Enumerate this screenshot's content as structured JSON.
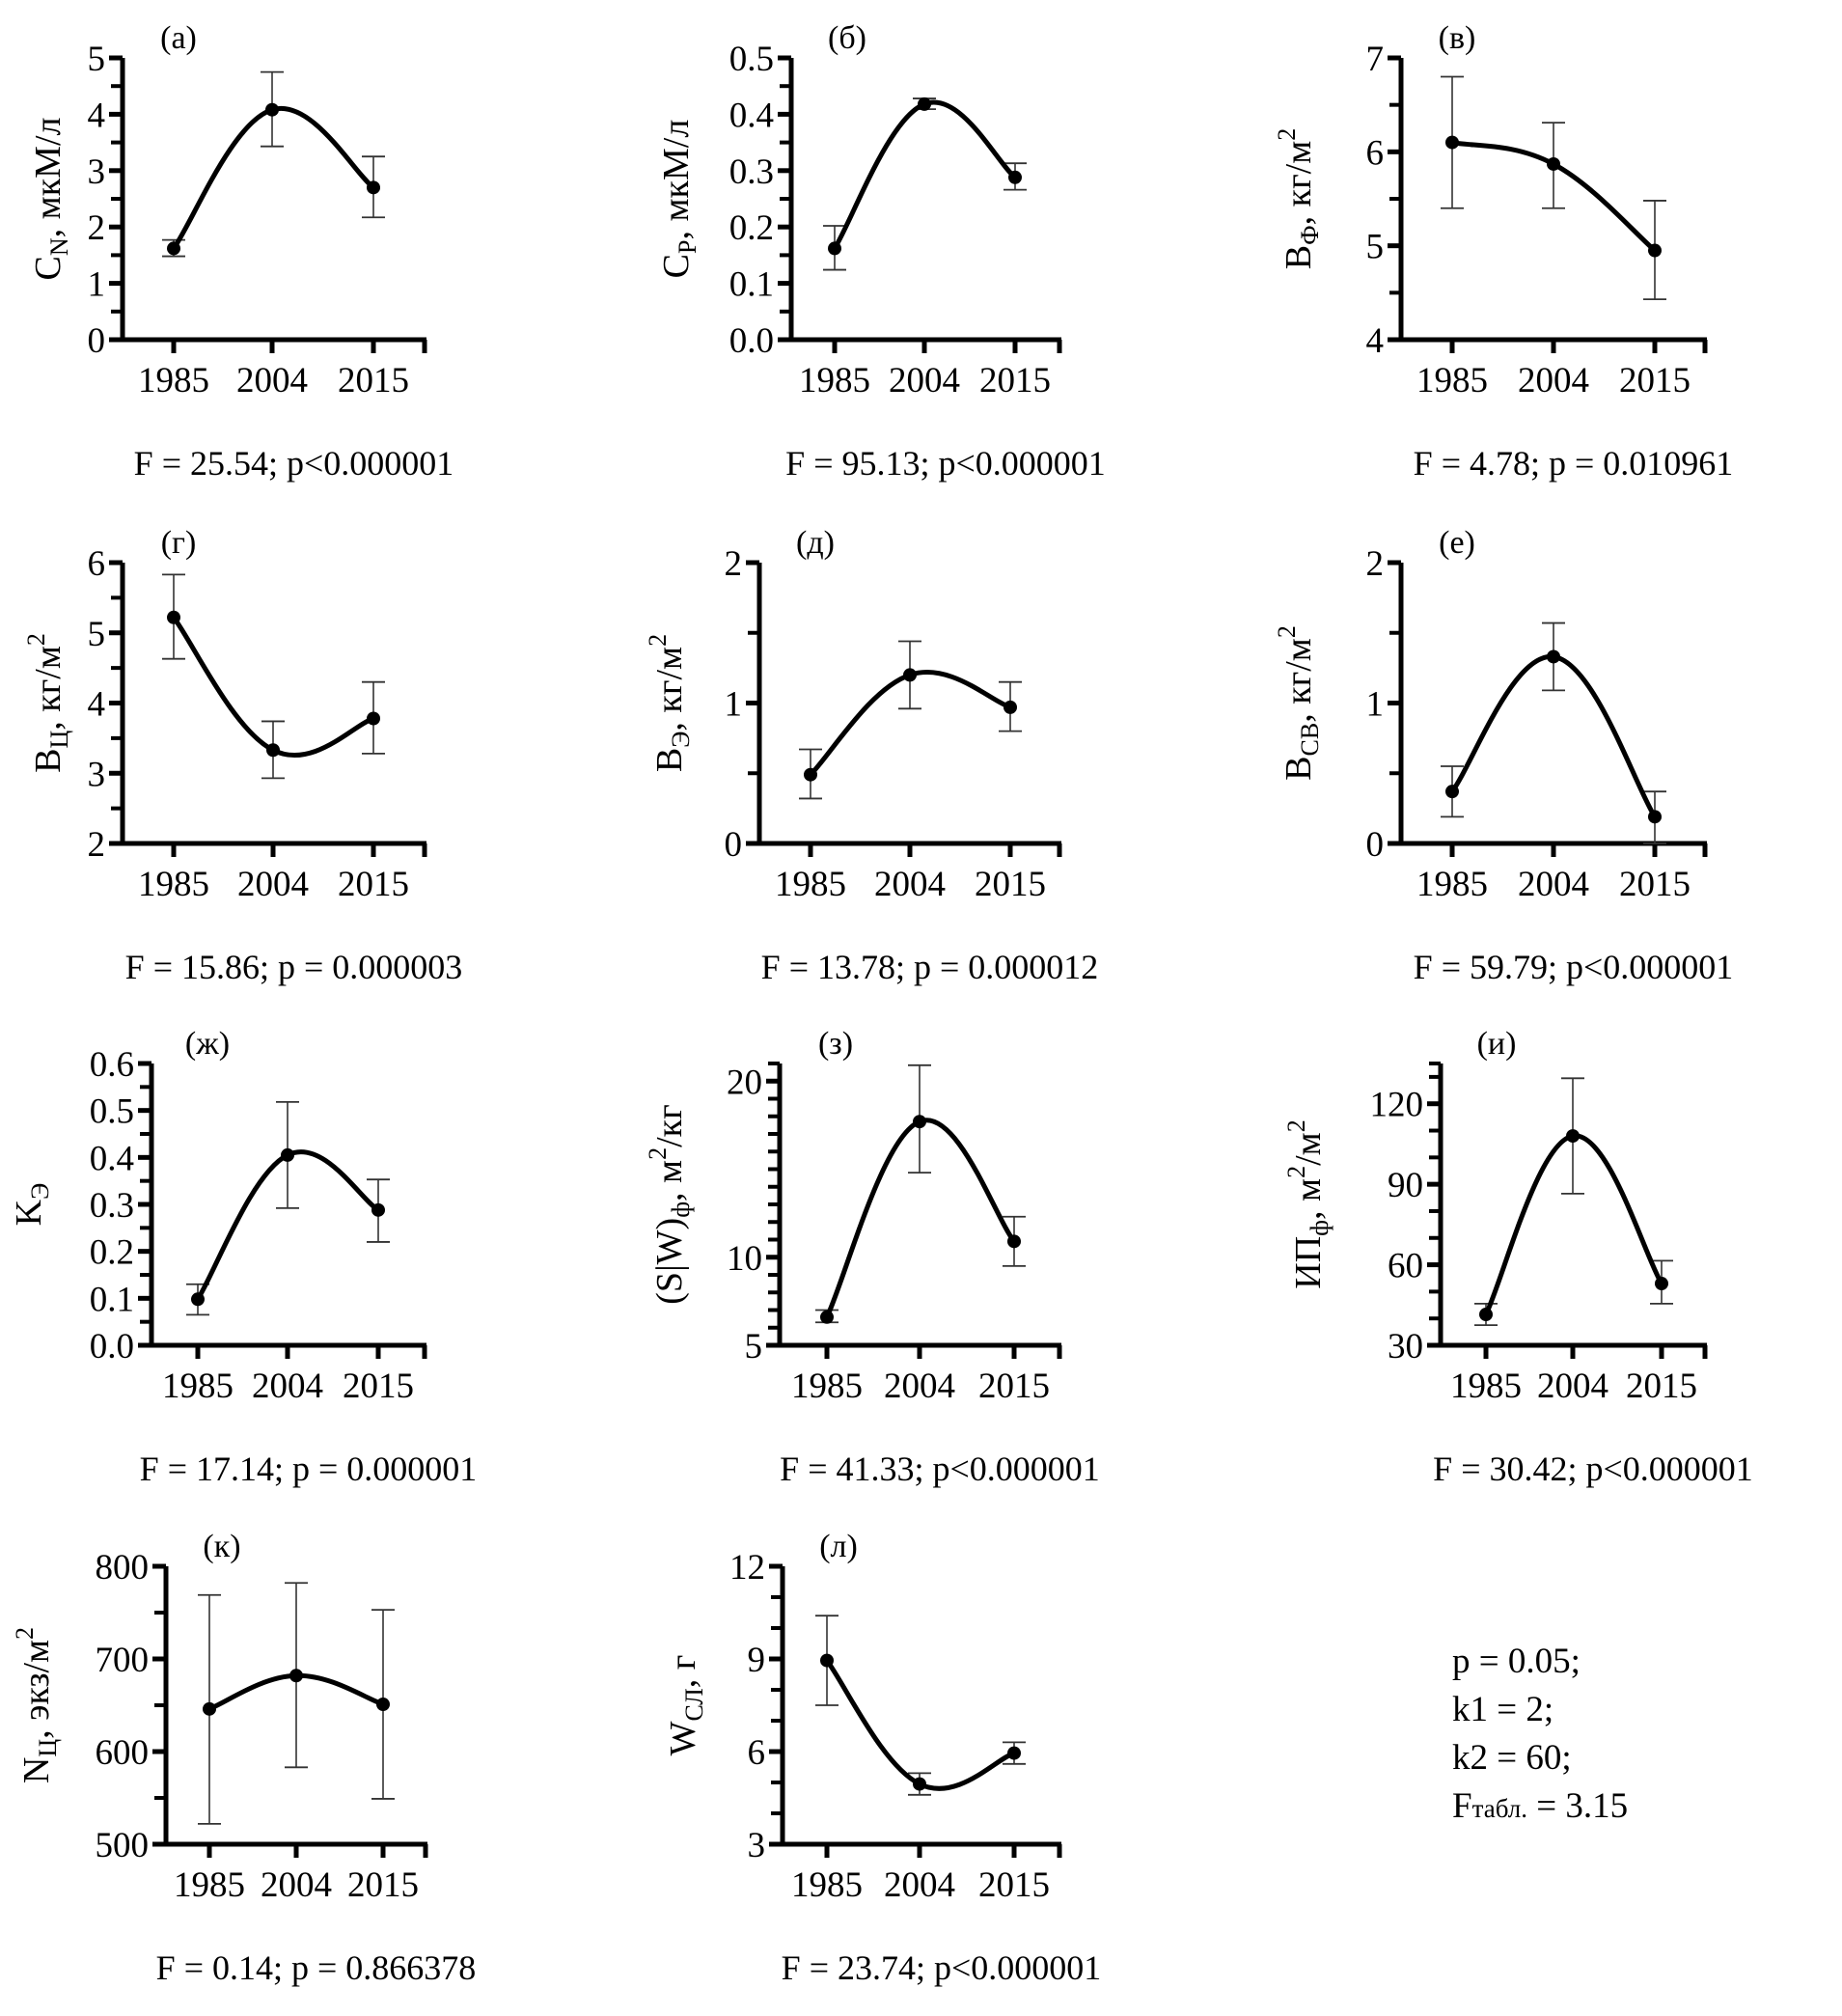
{
  "figure": {
    "notes": {
      "lines": [
        "p = 0.05;",
        "k1 = 2;",
        "k2 = 60;"
      ],
      "f_table_main": "F",
      "f_table_sub": "табл.",
      "f_table_rest": " = 3.15"
    }
  },
  "chart_data": [
    {
      "id": "a",
      "type": "line",
      "letter": "(а)",
      "ylabel_main": "C",
      "ylabel_sub": "N",
      "ylabel_unit": ", мкМ/л",
      "ylabel_sup": "",
      "categories": [
        "1985",
        "2004",
        "2015"
      ],
      "values": [
        1.62,
        4.08,
        2.7
      ],
      "err_low": [
        1.48,
        3.43,
        2.17
      ],
      "err_high": [
        1.77,
        4.75,
        3.25
      ],
      "ylim": [
        0,
        5
      ],
      "yticks": [
        0,
        1,
        2,
        3,
        4,
        5
      ],
      "ytick_labels": [
        "0",
        "1",
        "2",
        "3",
        "4",
        "5"
      ],
      "minor_step": 0.5,
      "stat": "F = 25.54; p<0.000001"
    },
    {
      "id": "b",
      "type": "line",
      "letter": "(б)",
      "ylabel_main": "C",
      "ylabel_sub": "P",
      "ylabel_unit": ", мкМ/л",
      "ylabel_sup": "",
      "categories": [
        "1985",
        "2004",
        "2015"
      ],
      "values": [
        0.162,
        0.418,
        0.288
      ],
      "err_low": [
        0.124,
        0.409,
        0.266
      ],
      "err_high": [
        0.202,
        0.428,
        0.313
      ],
      "ylim": [
        0,
        0.5
      ],
      "yticks": [
        0,
        0.1,
        0.2,
        0.3,
        0.4,
        0.5
      ],
      "ytick_labels": [
        "0.0",
        "0.1",
        "0.2",
        "0.3",
        "0.4",
        "0.5"
      ],
      "minor_step": 0.05,
      "stat": "F = 95.13; p<0.000001"
    },
    {
      "id": "v",
      "type": "line",
      "letter": "(в)",
      "ylabel_main": "B",
      "ylabel_sub": "Ф",
      "ylabel_unit": ", кг/м",
      "ylabel_sup": "2",
      "categories": [
        "1985",
        "2004",
        "2015"
      ],
      "values": [
        6.1,
        5.87,
        4.95
      ],
      "err_low": [
        5.4,
        5.4,
        4.43
      ],
      "err_high": [
        6.8,
        6.31,
        5.48
      ],
      "ylim": [
        4,
        7
      ],
      "yticks": [
        4,
        5,
        6,
        7
      ],
      "ytick_labels": [
        "4",
        "5",
        "6",
        "7"
      ],
      "minor_step": 0.5,
      "stat": "F = 4.78; p = 0.010961"
    },
    {
      "id": "g",
      "type": "line",
      "letter": "(г)",
      "ylabel_main": "B",
      "ylabel_sub": "Ц",
      "ylabel_unit": ", кг/м",
      "ylabel_sup": "2",
      "categories": [
        "1985",
        "2004",
        "2015"
      ],
      "values": [
        5.22,
        3.33,
        3.78
      ],
      "err_low": [
        4.63,
        2.93,
        3.28
      ],
      "err_high": [
        5.83,
        3.74,
        4.3
      ],
      "ylim": [
        2,
        6
      ],
      "yticks": [
        2,
        3,
        4,
        5,
        6
      ],
      "ytick_labels": [
        "2",
        "3",
        "4",
        "5",
        "6"
      ],
      "minor_step": 0.5,
      "stat": "F = 15.86; p = 0.000003"
    },
    {
      "id": "d",
      "type": "line",
      "letter": "(д)",
      "ylabel_main": "B",
      "ylabel_sub": "Э",
      "ylabel_unit": ", кг/м",
      "ylabel_sup": "2",
      "categories": [
        "1985",
        "2004",
        "2015"
      ],
      "values": [
        0.49,
        1.2,
        0.97
      ],
      "err_low": [
        0.32,
        0.96,
        0.8
      ],
      "err_high": [
        0.67,
        1.44,
        1.15
      ],
      "ylim": [
        0,
        2
      ],
      "yticks": [
        0,
        1,
        2
      ],
      "ytick_labels": [
        "0",
        "1",
        "2"
      ],
      "minor_step": 0.5,
      "stat": "F = 13.78; p = 0.000012"
    },
    {
      "id": "e",
      "type": "line",
      "letter": "(е)",
      "ylabel_main": "B",
      "ylabel_sub": "CB",
      "ylabel_unit": ", кг/м",
      "ylabel_sup": "2",
      "categories": [
        "1985",
        "2004",
        "2015"
      ],
      "values": [
        0.37,
        1.33,
        0.19
      ],
      "err_low": [
        0.19,
        1.09,
        0.0
      ],
      "err_high": [
        0.55,
        1.57,
        0.37
      ],
      "ylim": [
        0,
        2
      ],
      "yticks": [
        0,
        1,
        2
      ],
      "ytick_labels": [
        "0",
        "1",
        "2"
      ],
      "minor_step": 0.5,
      "stat": "F = 59.79; p<0.000001"
    },
    {
      "id": "zh",
      "type": "line",
      "letter": "(ж)",
      "ylabel_main": "K",
      "ylabel_sub": "Э",
      "ylabel_unit": "",
      "ylabel_sup": "",
      "categories": [
        "1985",
        "2004",
        "2015"
      ],
      "values": [
        0.098,
        0.405,
        0.288
      ],
      "err_low": [
        0.065,
        0.292,
        0.22
      ],
      "err_high": [
        0.13,
        0.518,
        0.353
      ],
      "ylim": [
        0,
        0.6
      ],
      "yticks": [
        0,
        0.1,
        0.2,
        0.3,
        0.4,
        0.5,
        0.6
      ],
      "ytick_labels": [
        "0.0",
        "0.1",
        "0.2",
        "0.3",
        "0.4",
        "0.5",
        "0.6"
      ],
      "minor_step": 0.05,
      "stat": "F = 17.14; p = 0.000001"
    },
    {
      "id": "z",
      "type": "line",
      "letter": "(з)",
      "ylabel_main": "(S|W)",
      "ylabel_sub": "ф",
      "ylabel_unit": ", м",
      "ylabel_sup": "2",
      "ylabel_tail": "/кг",
      "categories": [
        "1985",
        "2004",
        "2015"
      ],
      "values": [
        6.6,
        17.7,
        10.9
      ],
      "err_low": [
        6.3,
        14.8,
        9.5
      ],
      "err_high": [
        7.0,
        20.9,
        12.3
      ],
      "ylim": [
        5,
        21
      ],
      "yticks": [
        5,
        10,
        20
      ],
      "ytick_labels": [
        "5",
        "10",
        "20"
      ],
      "minor_step": 1,
      "stat": "F = 41.33; p<0.000001"
    },
    {
      "id": "i",
      "type": "line",
      "letter": "(и)",
      "ylabel_main": "ИП",
      "ylabel_sub": "ф",
      "ylabel_unit": ", м",
      "ylabel_sup": "2",
      "ylabel_tail": "/м",
      "ylabel_sup2": "2",
      "categories": [
        "1985",
        "2004",
        "2015"
      ],
      "values": [
        41.5,
        108.0,
        53.0
      ],
      "err_low": [
        37.5,
        86.5,
        45.5
      ],
      "err_high": [
        45.5,
        129.5,
        61.5
      ],
      "ylim": [
        30,
        135
      ],
      "yticks": [
        30,
        60,
        90,
        120
      ],
      "ytick_labels": [
        "30",
        "60",
        "90",
        "120"
      ],
      "minor_step": 10,
      "stat": "F = 30.42; p<0.000001"
    },
    {
      "id": "k",
      "type": "line",
      "letter": "(к)",
      "ylabel_main": "N",
      "ylabel_sub": "Ц",
      "ylabel_unit": ", экз/м",
      "ylabel_sup": "2",
      "categories": [
        "1985",
        "2004",
        "2015"
      ],
      "values": [
        646,
        682,
        651
      ],
      "err_low": [
        522,
        583,
        549
      ],
      "err_high": [
        769,
        782,
        753
      ],
      "ylim": [
        500,
        800
      ],
      "yticks": [
        500,
        600,
        700,
        800
      ],
      "ytick_labels": [
        "500",
        "600",
        "700",
        "800"
      ],
      "minor_step": 50,
      "stat": "F = 0.14; p = 0.866378"
    },
    {
      "id": "l",
      "type": "line",
      "letter": "(л)",
      "ylabel_main": "W",
      "ylabel_sub": "СЛ",
      "ylabel_unit": ", г",
      "ylabel_sup": "",
      "categories": [
        "1985",
        "2004",
        "2015"
      ],
      "values": [
        8.95,
        4.95,
        5.95
      ],
      "err_low": [
        7.5,
        4.6,
        5.6
      ],
      "err_high": [
        10.4,
        5.3,
        6.3
      ],
      "ylim": [
        3,
        12
      ],
      "yticks": [
        3,
        6,
        9,
        12
      ],
      "ytick_labels": [
        "3",
        "6",
        "9",
        "12"
      ],
      "minor_step": 1,
      "stat": "F = 23.74; p<0.000001"
    }
  ]
}
